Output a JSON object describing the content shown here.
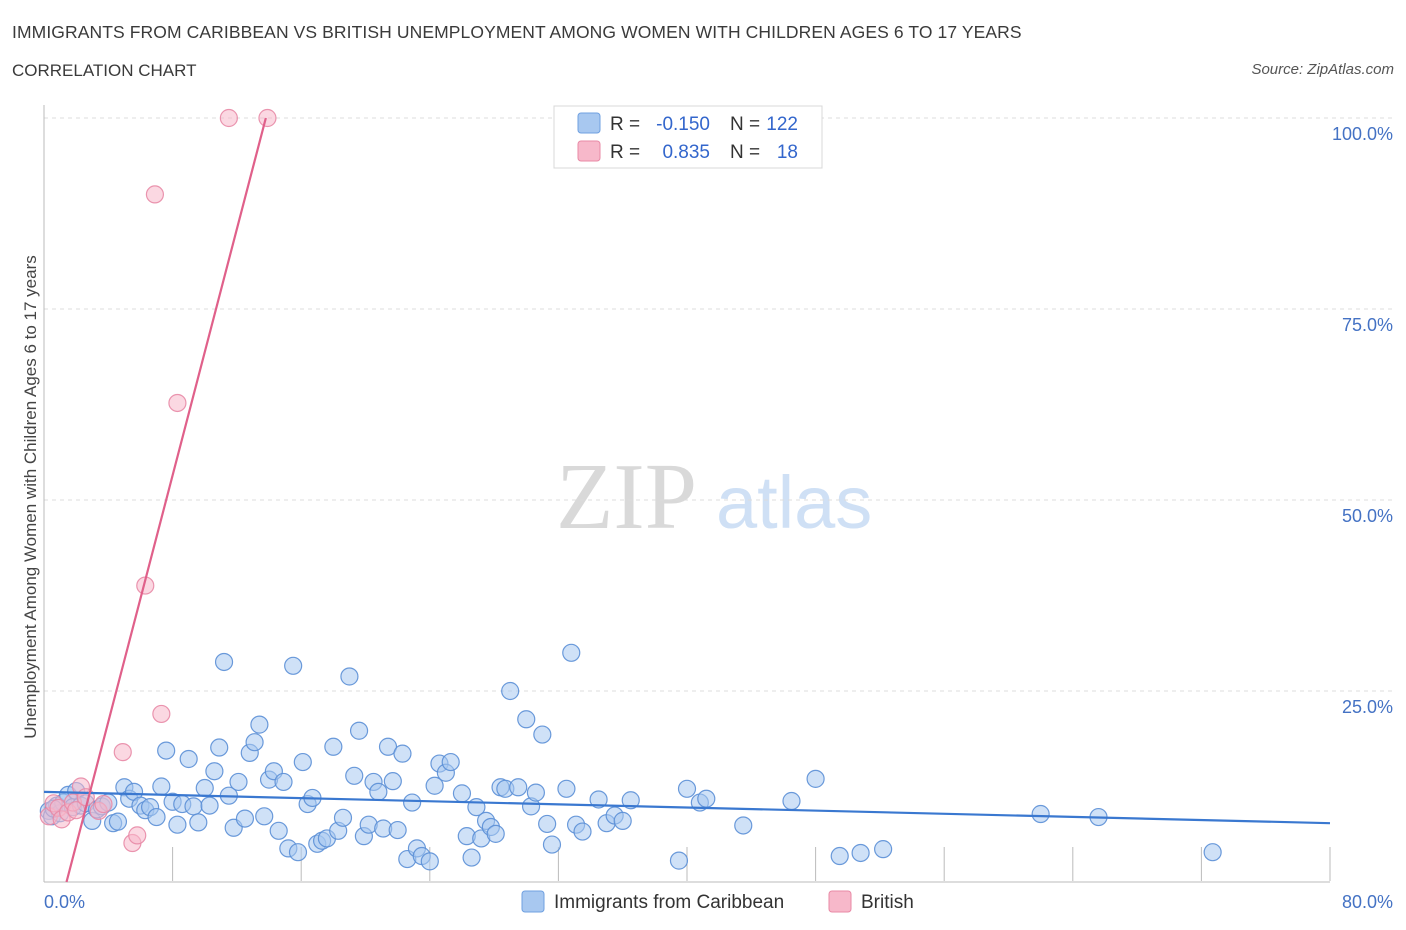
{
  "header": {
    "title": "IMMIGRANTS FROM CARIBBEAN VS BRITISH UNEMPLOYMENT AMONG WOMEN WITH CHILDREN AGES 6 TO 17 YEARS",
    "subtitle": "CORRELATION CHART",
    "source": "Source: ZipAtlas.com"
  },
  "watermark": {
    "zip": "ZIP",
    "atlas": "atlas"
  },
  "legend": {
    "r_label": "R =",
    "n_label": "N =",
    "rows": [
      {
        "r": "-0.150",
        "n": "122",
        "color": "#a8c8f0",
        "stroke": "#6fa0e0"
      },
      {
        "r": "0.835",
        "n": "18",
        "color": "#f7b8ca",
        "stroke": "#e88aa6"
      }
    ]
  },
  "bottom_legend": [
    {
      "label": "Immigrants from Caribbean",
      "color": "#a8c8f0",
      "stroke": "#6fa0e0"
    },
    {
      "label": "British",
      "color": "#f7b8ca",
      "stroke": "#e88aa6"
    }
  ],
  "chart_data": {
    "type": "scatter",
    "title": "IMMIGRANTS FROM CARIBBEAN VS BRITISH UNEMPLOYMENT AMONG WOMEN WITH CHILDREN AGES 6 TO 17 YEARS",
    "xlabel": "",
    "ylabel": "Unemployment Among Women with Children Ages 6 to 17 years",
    "xlim": [
      0,
      80
    ],
    "ylim": [
      0,
      100
    ],
    "x_tick_labels": [
      "0.0%",
      "80.0%"
    ],
    "y_tick_values": [
      25,
      50,
      75,
      100
    ],
    "y_tick_labels": [
      "25.0%",
      "50.0%",
      "75.0%",
      "100.0%"
    ],
    "grid": true,
    "series": [
      {
        "name": "Immigrants from Caribbean",
        "color": "#a8c8f0",
        "stroke": "#5b8fd6",
        "trend": {
          "x": [
            0,
            80
          ],
          "y": [
            11.8,
            7.7
          ],
          "color": "#3a78d0"
        },
        "points": [
          [
            0.3,
            9.3
          ],
          [
            0.5,
            8.6
          ],
          [
            0.8,
            10.0
          ],
          [
            1.0,
            9.0
          ],
          [
            1.2,
            10.4
          ],
          [
            1.5,
            11.4
          ],
          [
            1.8,
            9.8
          ],
          [
            2.0,
            11.9
          ],
          [
            2.3,
            10.0
          ],
          [
            2.6,
            10.3
          ],
          [
            3.0,
            8.0
          ],
          [
            3.3,
            9.5
          ],
          [
            3.6,
            9.9
          ],
          [
            4.0,
            10.4
          ],
          [
            4.3,
            7.7
          ],
          [
            4.6,
            7.9
          ],
          [
            5.0,
            12.4
          ],
          [
            5.3,
            10.9
          ],
          [
            5.6,
            11.8
          ],
          [
            6.0,
            10.0
          ],
          [
            6.3,
            9.4
          ],
          [
            6.6,
            9.8
          ],
          [
            7.0,
            8.5
          ],
          [
            7.3,
            12.5
          ],
          [
            7.6,
            17.2
          ],
          [
            8.0,
            10.5
          ],
          [
            8.3,
            7.5
          ],
          [
            8.6,
            10.2
          ],
          [
            9.0,
            16.1
          ],
          [
            9.3,
            9.9
          ],
          [
            9.6,
            7.8
          ],
          [
            10.0,
            12.3
          ],
          [
            10.3,
            10.0
          ],
          [
            10.6,
            14.5
          ],
          [
            10.9,
            17.6
          ],
          [
            11.2,
            28.8
          ],
          [
            11.5,
            11.3
          ],
          [
            11.8,
            7.1
          ],
          [
            12.1,
            13.1
          ],
          [
            12.5,
            8.3
          ],
          [
            12.8,
            16.9
          ],
          [
            13.1,
            18.3
          ],
          [
            13.4,
            20.6
          ],
          [
            13.7,
            8.6
          ],
          [
            14.0,
            13.4
          ],
          [
            14.3,
            14.5
          ],
          [
            14.6,
            6.7
          ],
          [
            14.9,
            13.1
          ],
          [
            15.2,
            4.4
          ],
          [
            15.5,
            28.3
          ],
          [
            15.8,
            3.9
          ],
          [
            16.1,
            15.7
          ],
          [
            16.4,
            10.2
          ],
          [
            16.7,
            11.0
          ],
          [
            17.0,
            5.0
          ],
          [
            17.3,
            5.4
          ],
          [
            17.6,
            5.7
          ],
          [
            18.0,
            17.7
          ],
          [
            18.3,
            6.7
          ],
          [
            18.6,
            8.4
          ],
          [
            19.0,
            26.9
          ],
          [
            19.3,
            13.9
          ],
          [
            19.6,
            19.8
          ],
          [
            19.9,
            6.0
          ],
          [
            20.2,
            7.5
          ],
          [
            20.5,
            13.1
          ],
          [
            20.8,
            11.8
          ],
          [
            21.1,
            7.0
          ],
          [
            21.4,
            17.7
          ],
          [
            21.7,
            13.2
          ],
          [
            22.0,
            6.8
          ],
          [
            22.3,
            16.8
          ],
          [
            22.6,
            3.0
          ],
          [
            22.9,
            10.4
          ],
          [
            23.2,
            4.4
          ],
          [
            23.5,
            3.4
          ],
          [
            24.0,
            2.7
          ],
          [
            24.3,
            12.6
          ],
          [
            24.6,
            15.5
          ],
          [
            25.0,
            14.3
          ],
          [
            25.3,
            15.7
          ],
          [
            26.0,
            11.6
          ],
          [
            26.3,
            6.0
          ],
          [
            26.6,
            3.2
          ],
          [
            26.9,
            9.8
          ],
          [
            27.2,
            5.7
          ],
          [
            27.5,
            8.0
          ],
          [
            27.8,
            7.2
          ],
          [
            28.1,
            6.3
          ],
          [
            28.4,
            12.4
          ],
          [
            28.7,
            12.2
          ],
          [
            29.0,
            25.0
          ],
          [
            29.5,
            12.4
          ],
          [
            30.0,
            21.3
          ],
          [
            30.3,
            9.9
          ],
          [
            30.6,
            11.7
          ],
          [
            31.0,
            19.3
          ],
          [
            31.3,
            7.6
          ],
          [
            31.6,
            4.9
          ],
          [
            32.5,
            12.2
          ],
          [
            32.8,
            30.0
          ],
          [
            33.1,
            7.5
          ],
          [
            33.5,
            6.6
          ],
          [
            34.5,
            10.8
          ],
          [
            35.0,
            7.7
          ],
          [
            35.5,
            8.7
          ],
          [
            36.0,
            8.0
          ],
          [
            36.5,
            10.7
          ],
          [
            39.5,
            2.8
          ],
          [
            40.0,
            12.2
          ],
          [
            40.8,
            10.4
          ],
          [
            41.2,
            10.9
          ],
          [
            43.5,
            7.4
          ],
          [
            46.5,
            10.6
          ],
          [
            48.0,
            13.5
          ],
          [
            49.5,
            3.4
          ],
          [
            50.8,
            3.8
          ],
          [
            52.2,
            4.3
          ],
          [
            62.0,
            8.9
          ],
          [
            65.6,
            8.5
          ],
          [
            72.7,
            3.9
          ],
          [
            0.6,
            9.6
          ]
        ]
      },
      {
        "name": "British",
        "color": "#f7b8ca",
        "stroke": "#e88aa6",
        "trend": {
          "x": [
            1.4,
            13.8
          ],
          "y": [
            0,
            100
          ],
          "color": "#e0608a"
        },
        "points": [
          [
            0.3,
            8.6
          ],
          [
            0.6,
            10.3
          ],
          [
            0.9,
            9.7
          ],
          [
            1.1,
            8.2
          ],
          [
            1.5,
            9.1
          ],
          [
            1.8,
            10.4
          ],
          [
            2.0,
            9.4
          ],
          [
            2.3,
            12.5
          ],
          [
            2.6,
            11.1
          ],
          [
            3.4,
            9.3
          ],
          [
            3.7,
            10.2
          ],
          [
            4.9,
            17.0
          ],
          [
            5.5,
            5.1
          ],
          [
            5.8,
            6.1
          ],
          [
            6.3,
            38.8
          ],
          [
            7.3,
            22.0
          ],
          [
            8.3,
            62.7
          ],
          [
            11.5,
            100.0
          ]
        ],
        "extra_points": [
          [
            6.9,
            90.0
          ],
          [
            13.9,
            100.0
          ]
        ]
      }
    ]
  }
}
